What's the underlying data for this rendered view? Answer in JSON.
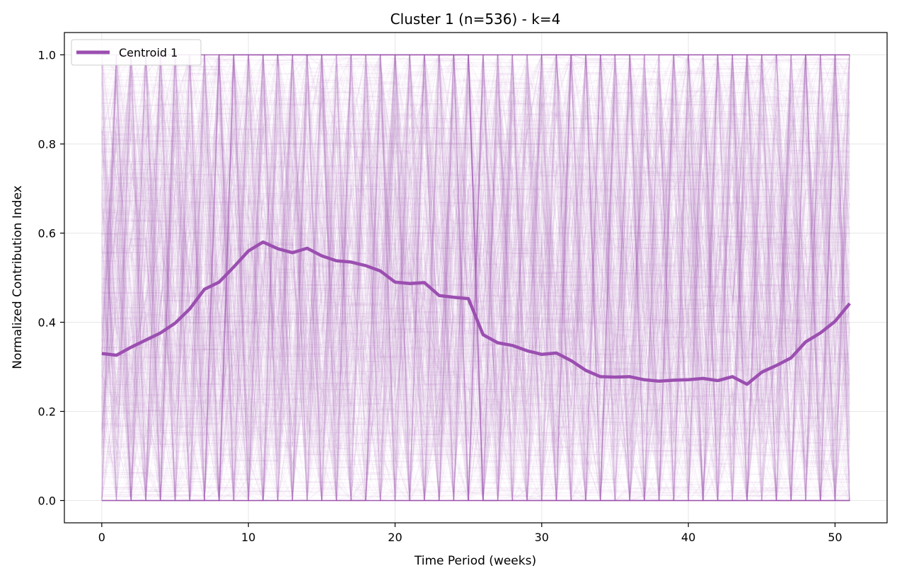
{
  "chart_data": {
    "type": "line",
    "title": "Cluster 1 (n=536) - k=4",
    "xlabel": "Time Period (weeks)",
    "ylabel": "Normalized Contribution Index",
    "xlim": [
      -2.55,
      53.55
    ],
    "ylim": [
      -0.05,
      1.05
    ],
    "x_ticks": [
      0,
      10,
      20,
      30,
      40,
      50
    ],
    "y_ticks": [
      "0.0",
      "0.2",
      "0.4",
      "0.6",
      "0.8",
      "1.0"
    ],
    "grid": true,
    "legend_position": "top-left",
    "series": [
      {
        "name": "Centroid 1",
        "color": "#9b4fb0",
        "x": [
          0,
          1,
          2,
          3,
          4,
          5,
          6,
          7,
          8,
          9,
          10,
          11,
          12,
          13,
          14,
          15,
          16,
          17,
          18,
          19,
          20,
          21,
          22,
          23,
          24,
          25,
          26,
          27,
          28,
          29,
          30,
          31,
          32,
          33,
          34,
          35,
          36,
          37,
          38,
          39,
          40,
          41,
          42,
          43,
          44,
          45,
          46,
          47,
          48,
          49,
          50,
          51
        ],
        "values": [
          0.33,
          0.326,
          0.344,
          0.36,
          0.376,
          0.398,
          0.43,
          0.474,
          0.49,
          0.524,
          0.56,
          0.58,
          0.565,
          0.556,
          0.566,
          0.549,
          0.538,
          0.535,
          0.527,
          0.515,
          0.49,
          0.487,
          0.489,
          0.46,
          0.456,
          0.453,
          0.372,
          0.354,
          0.348,
          0.336,
          0.328,
          0.331,
          0.314,
          0.292,
          0.278,
          0.277,
          0.278,
          0.271,
          0.268,
          0.27,
          0.271,
          0.274,
          0.269,
          0.278,
          0.261,
          0.288,
          0.303,
          0.32,
          0.356,
          0.376,
          0.402,
          0.442
        ]
      }
    ],
    "background_series_color": "#9b4fb0",
    "background_series_count": 536
  }
}
